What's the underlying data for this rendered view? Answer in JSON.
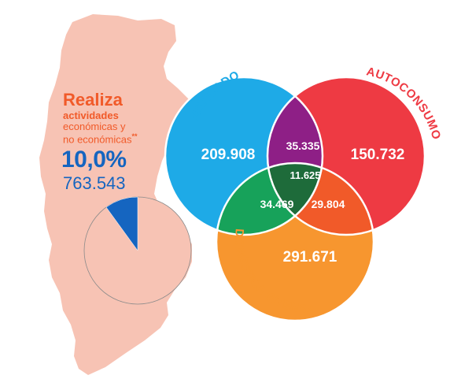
{
  "summary": {
    "title": "Realiza",
    "line2": "actividades",
    "line3": "económicas y",
    "line4": "no económicas",
    "footnote_mark": "**",
    "percentage": "10,0%",
    "count": "763.543",
    "share": 0.1
  },
  "categories": {
    "mercado": "MERCADO",
    "autoconsumo": "AUTOCONSUMO",
    "domestica": "DOMÉSTICA INTENSA"
  },
  "values": {
    "mercado_only": "209.908",
    "autoconsumo_only": "150.732",
    "domestica_only": "291.671",
    "mercado_autoconsumo": "35.335",
    "mercado_domestica": "34.469",
    "autoconsumo_domestica": "29.804",
    "all_three": "11.625"
  },
  "colors": {
    "map": "#f7c3b4",
    "pie": "#f7c3b4",
    "pie_slice": "#1565c0",
    "mercado": "#1eaae7",
    "autoconsumo": "#ee3a43",
    "domestica": "#f7962f",
    "mercado_autoconsumo": "#8e1f86",
    "mercado_domestica": "#17a25a",
    "autoconsumo_domestica": "#f15a29",
    "all_three": "#1e6b3a",
    "title": "#f15a29",
    "numbers": "#1565c0"
  }
}
